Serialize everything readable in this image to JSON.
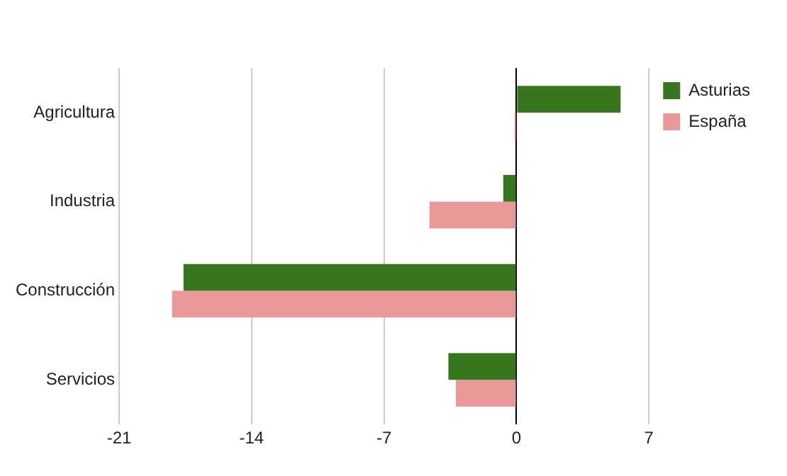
{
  "chart_data": {
    "type": "bar",
    "orientation": "horizontal",
    "categories": [
      "Agricultura",
      "Industria",
      "Construcción",
      "Servicios"
    ],
    "series": [
      {
        "name": "Asturias",
        "color": "#38761d",
        "values": [
          5.5,
          -0.7,
          -17.6,
          -3.6
        ]
      },
      {
        "name": "España",
        "color": "#ea9999",
        "values": [
          -0.1,
          -4.6,
          -18.2,
          -3.2
        ]
      }
    ],
    "xlim": [
      -21,
      7
    ],
    "xticks": [
      -21,
      -14,
      -7,
      0,
      7
    ],
    "grid": "x",
    "legend": "top right"
  }
}
